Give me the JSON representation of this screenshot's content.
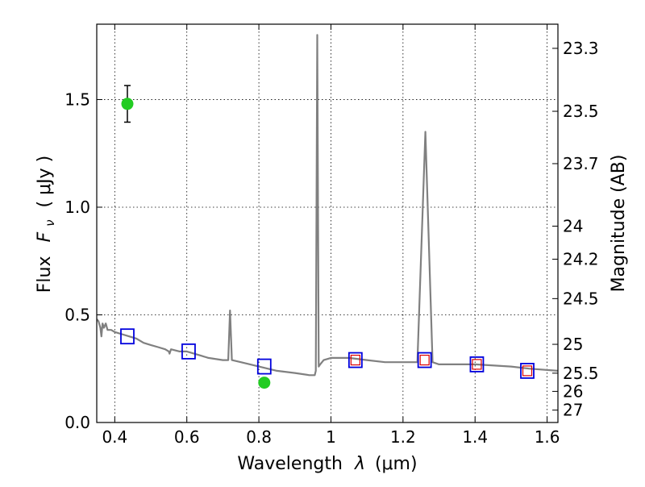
{
  "chart_data": {
    "type": "scatter",
    "x_axis": {
      "label_main": "Wavelength",
      "label_symbol": "λ",
      "label_unit": "(μm)",
      "range": [
        0.35,
        1.63
      ],
      "ticks": [
        0.4,
        0.6,
        0.8,
        1.0,
        1.2,
        1.4,
        1.6
      ],
      "tick_labels": [
        "0.4",
        "0.6",
        "0.8",
        "1",
        "1.2",
        "1.4",
        "1.6"
      ]
    },
    "y_axis": {
      "label_main": "Flux",
      "label_symbol": "F",
      "label_subscript": "ν",
      "label_unit": "( μJy )",
      "range": [
        0.0,
        1.85
      ],
      "ticks": [
        0.0,
        0.5,
        1.0,
        1.5
      ],
      "tick_labels": [
        "0.0",
        "0.5",
        "1.0",
        "1.5"
      ]
    },
    "y_axis_right": {
      "label": "Magnitude (AB)",
      "ticks": [
        23.3,
        23.5,
        23.7,
        24,
        24.2,
        24.5,
        25,
        25.5,
        26,
        27
      ],
      "tick_labels": [
        "23.3",
        "23.5",
        "23.7",
        "24",
        "24.2",
        "24.5",
        "25",
        "25.5",
        "26",
        "27"
      ]
    },
    "grid": true,
    "colors": {
      "spectrum": "#808080",
      "model_box": "#0000dd",
      "inner_box": "#dd0000",
      "observed": "#22cc22",
      "errorbar": "#000000"
    },
    "spectrum": [
      [
        0.35,
        0.48
      ],
      [
        0.355,
        0.47
      ],
      [
        0.36,
        0.44
      ],
      [
        0.363,
        0.4
      ],
      [
        0.366,
        0.46
      ],
      [
        0.37,
        0.44
      ],
      [
        0.375,
        0.46
      ],
      [
        0.38,
        0.43
      ],
      [
        0.39,
        0.43
      ],
      [
        0.4,
        0.42
      ],
      [
        0.42,
        0.41
      ],
      [
        0.44,
        0.4
      ],
      [
        0.46,
        0.39
      ],
      [
        0.48,
        0.37
      ],
      [
        0.5,
        0.36
      ],
      [
        0.52,
        0.35
      ],
      [
        0.54,
        0.34
      ],
      [
        0.55,
        0.33
      ],
      [
        0.552,
        0.32
      ],
      [
        0.556,
        0.34
      ],
      [
        0.58,
        0.33
      ],
      [
        0.6,
        0.33
      ],
      [
        0.62,
        0.32
      ],
      [
        0.64,
        0.31
      ],
      [
        0.66,
        0.3
      ],
      [
        0.7,
        0.29
      ],
      [
        0.715,
        0.29
      ],
      [
        0.72,
        0.52
      ],
      [
        0.725,
        0.29
      ],
      [
        0.75,
        0.28
      ],
      [
        0.8,
        0.26
      ],
      [
        0.85,
        0.24
      ],
      [
        0.9,
        0.23
      ],
      [
        0.94,
        0.22
      ],
      [
        0.955,
        0.22
      ],
      [
        0.958,
        0.24
      ],
      [
        0.962,
        1.8
      ],
      [
        0.966,
        0.26
      ],
      [
        0.97,
        0.27
      ],
      [
        0.98,
        0.29
      ],
      [
        1.0,
        0.3
      ],
      [
        1.05,
        0.3
      ],
      [
        1.1,
        0.29
      ],
      [
        1.15,
        0.28
      ],
      [
        1.2,
        0.28
      ],
      [
        1.24,
        0.28
      ],
      [
        1.262,
        1.35
      ],
      [
        1.282,
        0.28
      ],
      [
        1.3,
        0.27
      ],
      [
        1.4,
        0.27
      ],
      [
        1.5,
        0.26
      ],
      [
        1.55,
        0.25
      ],
      [
        1.63,
        0.24
      ]
    ],
    "model_boxes": [
      {
        "x": 0.435,
        "y": 0.4
      },
      {
        "x": 0.605,
        "y": 0.33
      },
      {
        "x": 0.815,
        "y": 0.26
      },
      {
        "x": 1.068,
        "y": 0.29
      },
      {
        "x": 1.26,
        "y": 0.29
      },
      {
        "x": 1.405,
        "y": 0.27
      },
      {
        "x": 1.545,
        "y": 0.24
      }
    ],
    "inner_boxes": [
      {
        "x": 1.068,
        "y": 0.29
      },
      {
        "x": 1.26,
        "y": 0.29
      },
      {
        "x": 1.405,
        "y": 0.27
      },
      {
        "x": 1.545,
        "y": 0.24
      }
    ],
    "observed_points": [
      {
        "x": 0.435,
        "y": 1.48,
        "yerr": 0.085
      },
      {
        "x": 0.815,
        "y": 0.185,
        "yerr": 0.02
      }
    ]
  }
}
